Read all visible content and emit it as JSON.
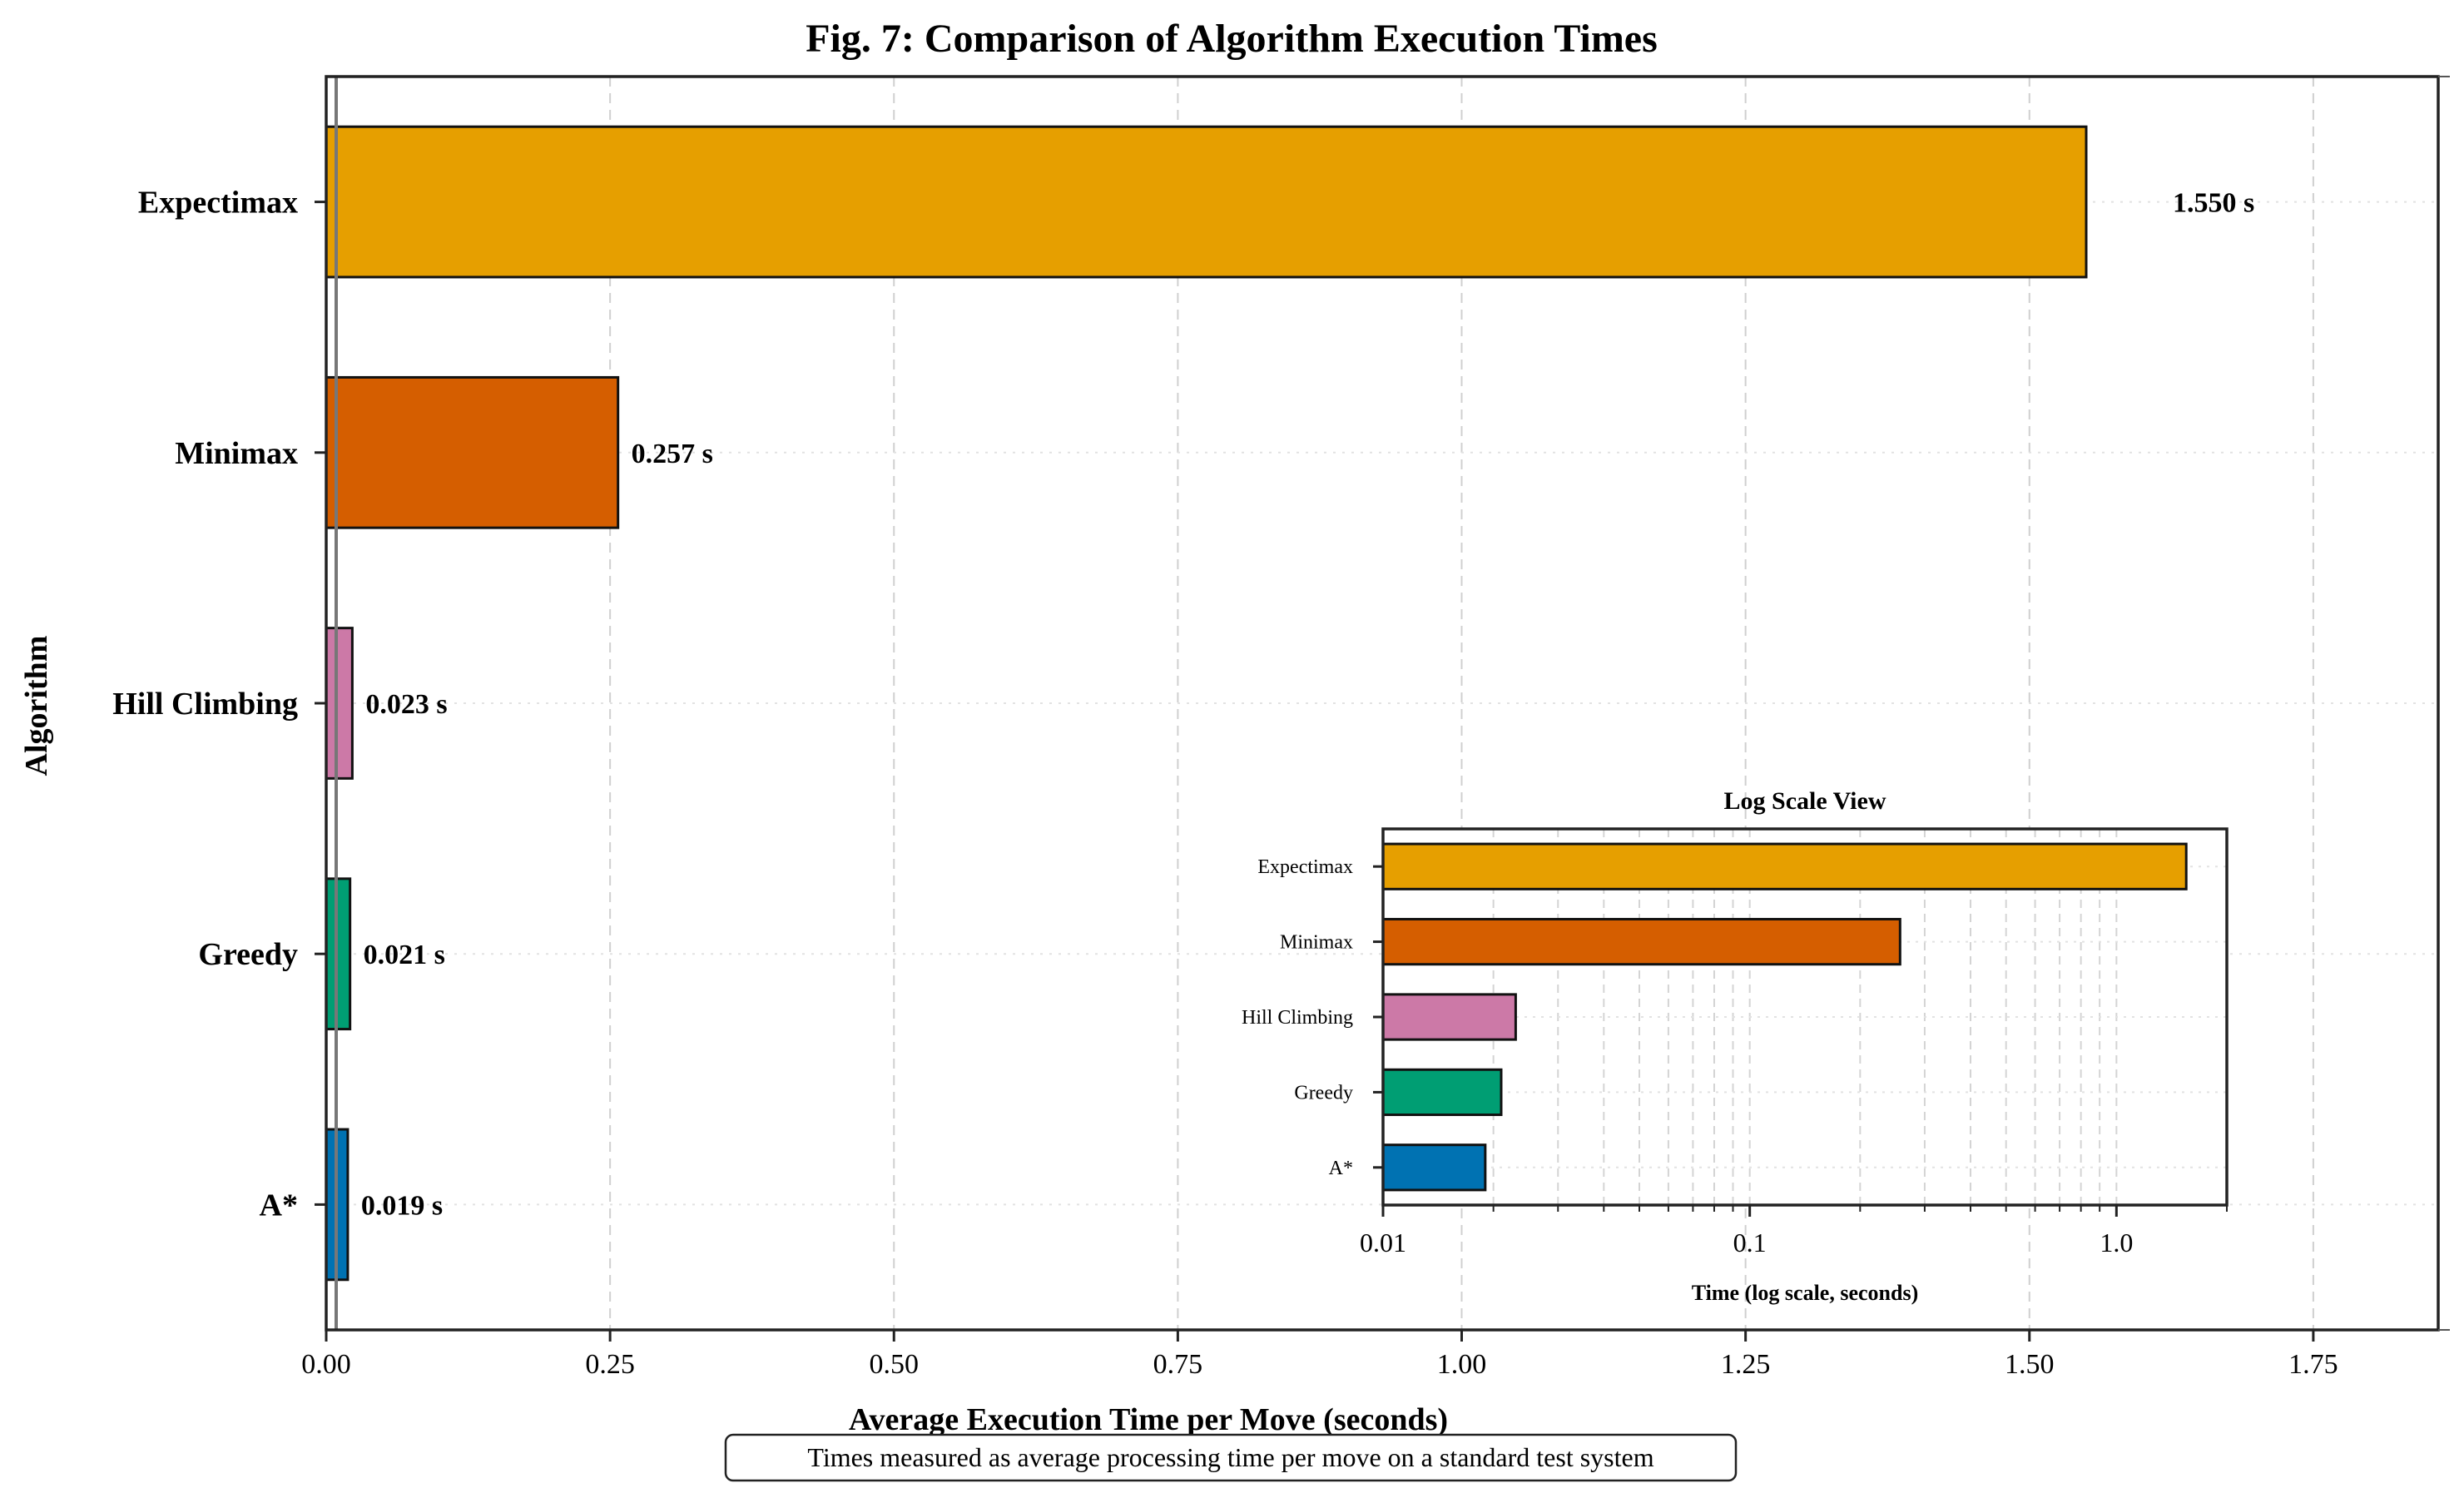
{
  "chart_data": [
    {
      "type": "bar",
      "orientation": "horizontal",
      "title": "Fig. 7: Comparison of Algorithm Execution Times",
      "xlabel": "Average Execution Time per Move (seconds)",
      "ylabel": "Algorithm",
      "categories": [
        "Expectimax",
        "Minimax",
        "Hill Climbing",
        "Greedy",
        "A*"
      ],
      "values": [
        1.55,
        0.257,
        0.023,
        0.021,
        0.019
      ],
      "value_labels": [
        "1.550 s",
        "0.257 s",
        "0.023 s",
        "0.021 s",
        "0.019 s"
      ],
      "colors": [
        "#E69F00",
        "#D55E00",
        "#CC79A7",
        "#009E73",
        "#0072B2"
      ],
      "xlim": [
        0,
        1.86
      ],
      "xticks": [
        0,
        0.25,
        0.5,
        0.75,
        1.0,
        1.25,
        1.5,
        1.75
      ],
      "xtick_labels": [
        "0.00",
        "0.25",
        "0.50",
        "0.75",
        "1.00",
        "1.25",
        "1.50",
        "1.75"
      ],
      "grid": true,
      "note": "Times measured as average processing time per move on a standard test system"
    },
    {
      "type": "bar",
      "orientation": "horizontal",
      "scale": "log",
      "title": "Log Scale View",
      "xlabel": "Time (log scale, seconds)",
      "categories": [
        "Expectimax",
        "Minimax",
        "Hill Climbing",
        "Greedy",
        "A*"
      ],
      "values": [
        1.55,
        0.257,
        0.023,
        0.021,
        0.019
      ],
      "colors": [
        "#E69F00",
        "#D55E00",
        "#CC79A7",
        "#009E73",
        "#0072B2"
      ],
      "xlim": [
        0.01,
        2.0
      ],
      "xticks": [
        0.01,
        0.1,
        1.0
      ],
      "xtick_labels": [
        "0.01",
        "0.1",
        "1.0"
      ],
      "grid": true
    }
  ]
}
